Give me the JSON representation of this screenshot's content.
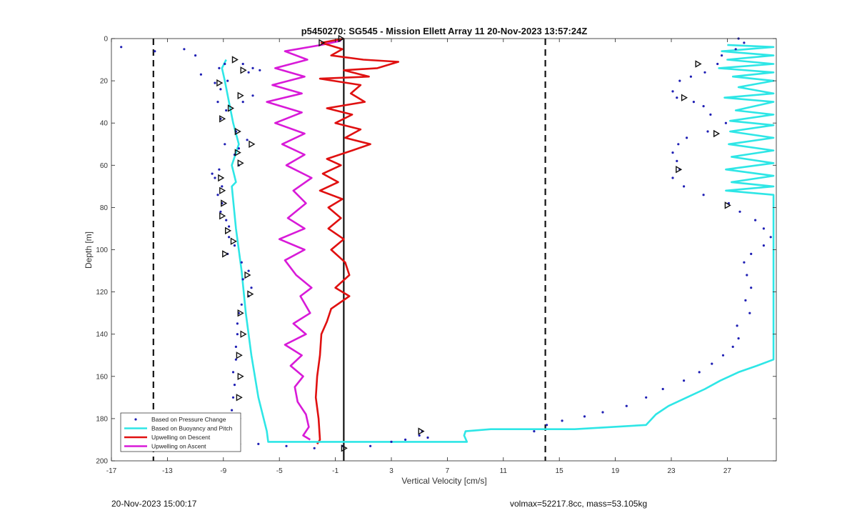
{
  "chart_data": {
    "type": "scatter",
    "title": "p5450270: SG545 - Mission Ellett Array 11 20-Nov-2023 13:57:24Z",
    "xlabel": "Vertical Velocity [cm/s]",
    "ylabel": "Depth [m]",
    "xlim": [
      -17,
      30.5
    ],
    "ylim": [
      200,
      0
    ],
    "y_reversed": true,
    "xticks": [
      -17,
      -13,
      -9,
      -5,
      -1,
      3,
      7,
      11,
      15,
      19,
      23,
      27
    ],
    "yticks": [
      0,
      20,
      40,
      60,
      80,
      100,
      120,
      140,
      160,
      180,
      200
    ],
    "grid": false,
    "legend_position": "bottom-left",
    "reference_lines": {
      "dashed_x": [
        -14,
        14
      ],
      "solid_x": [
        -0.4
      ]
    },
    "series": [
      {
        "name": "Based on Pressure Change",
        "style": "dots",
        "color": "#1f1fb4",
        "points": [
          [
            -16.3,
            4
          ],
          [
            -13.9,
            6
          ],
          [
            -11.8,
            5
          ],
          [
            -11,
            8
          ],
          [
            -10.6,
            17
          ],
          [
            -9.3,
            14
          ],
          [
            -8.9,
            12
          ],
          [
            -9.6,
            21
          ],
          [
            -9.2,
            24
          ],
          [
            -8.7,
            20
          ],
          [
            -7.6,
            12
          ],
          [
            -7.2,
            16
          ],
          [
            -6.9,
            14
          ],
          [
            -6.4,
            15
          ],
          [
            -6.9,
            27
          ],
          [
            -7.6,
            30
          ],
          [
            -9.4,
            30
          ],
          [
            -8.8,
            34
          ],
          [
            -9.2,
            38
          ],
          [
            -8.1,
            44
          ],
          [
            -7.3,
            48
          ],
          [
            -7.9,
            52
          ],
          [
            -8.2,
            55
          ],
          [
            -8.9,
            50
          ],
          [
            -7.9,
            60
          ],
          [
            -9.3,
            62
          ],
          [
            -9.8,
            64
          ],
          [
            -9.6,
            66
          ],
          [
            -9.1,
            70
          ],
          [
            -9.4,
            74
          ],
          [
            -9.1,
            78
          ],
          [
            -9.2,
            82
          ],
          [
            -8.8,
            86
          ],
          [
            -8.6,
            89
          ],
          [
            -8.6,
            94
          ],
          [
            -8.2,
            98
          ],
          [
            -8.7,
            102
          ],
          [
            -7.7,
            106
          ],
          [
            -7.2,
            110
          ],
          [
            -7.6,
            114
          ],
          [
            -7,
            118
          ],
          [
            -7.2,
            122
          ],
          [
            -7.7,
            126
          ],
          [
            -7.9,
            130
          ],
          [
            -8,
            135
          ],
          [
            -8,
            140
          ],
          [
            -8.1,
            146
          ],
          [
            -8.1,
            152
          ],
          [
            -8.3,
            158
          ],
          [
            -8.2,
            164
          ],
          [
            -8.3,
            170
          ],
          [
            -8.4,
            176
          ],
          [
            -8.2,
            182
          ],
          [
            -8.3,
            188
          ],
          [
            -8.3,
            192
          ],
          [
            -6.5,
            192
          ],
          [
            -4.5,
            193
          ],
          [
            -2.5,
            194
          ],
          [
            -0.5,
            193
          ],
          [
            1.5,
            193
          ],
          [
            3,
            191
          ],
          [
            4,
            190
          ],
          [
            5,
            188
          ],
          [
            5.2,
            186
          ],
          [
            5.6,
            189
          ],
          [
            27.8,
            0
          ],
          [
            28.2,
            2
          ],
          [
            27.6,
            5
          ],
          [
            26.6,
            8
          ],
          [
            26.3,
            12
          ],
          [
            25.4,
            16
          ],
          [
            24.4,
            18
          ],
          [
            23.6,
            20
          ],
          [
            23.1,
            25
          ],
          [
            23.4,
            28
          ],
          [
            24.6,
            30
          ],
          [
            25.3,
            32
          ],
          [
            25.8,
            36
          ],
          [
            26.9,
            40
          ],
          [
            25.6,
            44
          ],
          [
            24.1,
            47
          ],
          [
            23.5,
            50
          ],
          [
            23.1,
            54
          ],
          [
            23.4,
            58
          ],
          [
            23.6,
            62
          ],
          [
            23.1,
            66
          ],
          [
            23.9,
            70
          ],
          [
            25.3,
            74
          ],
          [
            27.1,
            78
          ],
          [
            27.9,
            82
          ],
          [
            29,
            86
          ],
          [
            29.6,
            90
          ],
          [
            30.1,
            94
          ],
          [
            29.6,
            98
          ],
          [
            28.7,
            102
          ],
          [
            28.2,
            106
          ],
          [
            28.4,
            112
          ],
          [
            28.7,
            118
          ],
          [
            28.3,
            124
          ],
          [
            28.6,
            130
          ],
          [
            27.7,
            136
          ],
          [
            27.8,
            142
          ],
          [
            27.4,
            146
          ],
          [
            26.7,
            150
          ],
          [
            25.9,
            154
          ],
          [
            25,
            158
          ],
          [
            23.9,
            162
          ],
          [
            22.4,
            166
          ],
          [
            21.2,
            170
          ],
          [
            19.8,
            174
          ],
          [
            18.1,
            177
          ],
          [
            16.8,
            179
          ],
          [
            15.2,
            181
          ],
          [
            14.1,
            183
          ],
          [
            13.2,
            186
          ]
        ]
      },
      {
        "name": "Based on Buoyancy and Pitch",
        "style": "line",
        "color": "#2ee6e6",
        "points": [
          [
            27,
            3
          ],
          [
            30.3,
            4
          ],
          [
            26.6,
            6
          ],
          [
            30.3,
            8
          ],
          [
            27,
            10
          ],
          [
            30.3,
            12
          ],
          [
            26.4,
            14
          ],
          [
            30.3,
            16
          ],
          [
            27.4,
            18
          ],
          [
            30.3,
            20
          ],
          [
            27.8,
            23
          ],
          [
            30.3,
            26
          ],
          [
            26.8,
            28
          ],
          [
            30.3,
            30
          ],
          [
            27.6,
            34
          ],
          [
            30.3,
            36
          ],
          [
            27.2,
            39
          ],
          [
            30.3,
            41
          ],
          [
            27.2,
            44
          ],
          [
            30.3,
            47
          ],
          [
            27.1,
            50
          ],
          [
            30.3,
            53
          ],
          [
            27.3,
            56
          ],
          [
            30.3,
            59
          ],
          [
            26.9,
            62
          ],
          [
            30.3,
            65
          ],
          [
            27.3,
            68
          ],
          [
            30.3,
            70
          ],
          [
            26.9,
            72
          ],
          [
            30.3,
            74
          ],
          [
            30.3,
            152
          ],
          [
            29.1,
            155
          ],
          [
            27.8,
            158
          ],
          [
            26.5,
            162
          ],
          [
            25.4,
            166
          ],
          [
            24.1,
            170
          ],
          [
            22.8,
            174
          ],
          [
            21.9,
            178
          ],
          [
            21.2,
            183
          ],
          [
            16.1,
            185
          ],
          [
            10.1,
            185
          ],
          [
            8.3,
            186
          ],
          [
            8.2,
            188
          ],
          [
            8.4,
            191
          ],
          [
            -5.8,
            191
          ],
          [
            -5.9,
            186
          ],
          [
            -6.5,
            170
          ],
          [
            -7,
            150
          ],
          [
            -7.4,
            130
          ],
          [
            -7.7,
            110
          ],
          [
            -8.1,
            90
          ],
          [
            -8.4,
            70
          ],
          [
            -8.1,
            68
          ],
          [
            -8.4,
            60
          ],
          [
            -7.9,
            50
          ],
          [
            -8.3,
            40
          ],
          [
            -8.6,
            30
          ],
          [
            -8.9,
            20
          ],
          [
            -9.1,
            14
          ],
          [
            -8.8,
            10
          ]
        ]
      },
      {
        "name": "Upwelling on Descent",
        "style": "line",
        "color": "#e01010",
        "points": [
          [
            -0.4,
            0
          ],
          [
            -2,
            2
          ],
          [
            -0.5,
            5
          ],
          [
            -1.3,
            8
          ],
          [
            1,
            10
          ],
          [
            3.5,
            11
          ],
          [
            2,
            14
          ],
          [
            -0.4,
            15
          ],
          [
            1.4,
            18
          ],
          [
            -2.1,
            19
          ],
          [
            0.8,
            22
          ],
          [
            0.1,
            26
          ],
          [
            1.1,
            30
          ],
          [
            -1.6,
            33
          ],
          [
            0.2,
            36
          ],
          [
            -1,
            40
          ],
          [
            0.8,
            43
          ],
          [
            -0.3,
            47
          ],
          [
            1.5,
            50
          ],
          [
            0.2,
            53
          ],
          [
            -1.6,
            57
          ],
          [
            -0.6,
            60
          ],
          [
            -1.9,
            64
          ],
          [
            -0.8,
            68
          ],
          [
            -2.1,
            72
          ],
          [
            -0.5,
            76
          ],
          [
            -1.5,
            80
          ],
          [
            -0.6,
            85
          ],
          [
            -1.5,
            90
          ],
          [
            -0.4,
            95
          ],
          [
            -1.3,
            100
          ],
          [
            -0.3,
            106
          ],
          [
            0,
            112
          ],
          [
            -1,
            118
          ],
          [
            0,
            122
          ],
          [
            -1.3,
            128
          ],
          [
            -1.6,
            134
          ],
          [
            -2,
            140
          ],
          [
            -2.1,
            150
          ],
          [
            -2.3,
            160
          ],
          [
            -2.4,
            170
          ],
          [
            -2.2,
            180
          ],
          [
            -2.1,
            190
          ],
          [
            -2.3,
            192
          ]
        ]
      },
      {
        "name": "Upwelling on Ascent",
        "style": "line",
        "color": "#d81ad8",
        "points": [
          [
            -2.8,
            190
          ],
          [
            -3.3,
            188
          ],
          [
            -2.9,
            184
          ],
          [
            -3.1,
            178
          ],
          [
            -3.7,
            172
          ],
          [
            -3.9,
            165
          ],
          [
            -3.3,
            160
          ],
          [
            -4.2,
            155
          ],
          [
            -3.4,
            150
          ],
          [
            -4.6,
            145
          ],
          [
            -3.1,
            140
          ],
          [
            -4,
            135
          ],
          [
            -2.8,
            130
          ],
          [
            -3.5,
            122
          ],
          [
            -2.7,
            118
          ],
          [
            -3.8,
            112
          ],
          [
            -4.6,
            105
          ],
          [
            -3.2,
            100
          ],
          [
            -5,
            95
          ],
          [
            -3.2,
            90
          ],
          [
            -4.4,
            85
          ],
          [
            -3.1,
            78
          ],
          [
            -4,
            72
          ],
          [
            -2.7,
            66
          ],
          [
            -4.5,
            60
          ],
          [
            -3.2,
            55
          ],
          [
            -4.8,
            50
          ],
          [
            -3.2,
            45
          ],
          [
            -5.3,
            40
          ],
          [
            -3.4,
            35
          ],
          [
            -5.9,
            30
          ],
          [
            -3.4,
            26
          ],
          [
            -5.5,
            22
          ],
          [
            -3.2,
            18
          ],
          [
            -5.3,
            14
          ],
          [
            -3,
            10
          ],
          [
            -4.6,
            6
          ],
          [
            -2,
            3
          ],
          [
            -0.6,
            1
          ]
        ]
      }
    ],
    "markers": {
      "style": "open-triangle-right",
      "points": [
        [
          -2,
          2
        ],
        [
          -0.6,
          0
        ],
        [
          -8.2,
          10
        ],
        [
          -7.6,
          15
        ],
        [
          -9.3,
          21
        ],
        [
          -7.8,
          27
        ],
        [
          -8.5,
          33
        ],
        [
          -9.1,
          38
        ],
        [
          -8,
          44
        ],
        [
          -7,
          50
        ],
        [
          -8,
          54
        ],
        [
          -7.8,
          59
        ],
        [
          -9.2,
          66
        ],
        [
          -9.1,
          72
        ],
        [
          -9,
          78
        ],
        [
          -9.1,
          84
        ],
        [
          -8.7,
          91
        ],
        [
          -8.3,
          96
        ],
        [
          -8.9,
          102
        ],
        [
          -7.3,
          112
        ],
        [
          -7.1,
          121
        ],
        [
          -7.8,
          130
        ],
        [
          -7.6,
          140
        ],
        [
          -7.9,
          150
        ],
        [
          -7.8,
          160
        ],
        [
          -7.9,
          170
        ],
        [
          -8,
          180
        ],
        [
          -8,
          192
        ],
        [
          -0.4,
          194
        ],
        [
          5.1,
          186
        ],
        [
          24.9,
          12
        ],
        [
          23.9,
          28
        ],
        [
          26.2,
          45
        ],
        [
          23.5,
          62
        ],
        [
          27,
          79
        ]
      ]
    }
  },
  "footer": {
    "left": "20-Nov-2023 15:00:17",
    "right": "volmax=52217.8cc, mass=53.105kg"
  }
}
